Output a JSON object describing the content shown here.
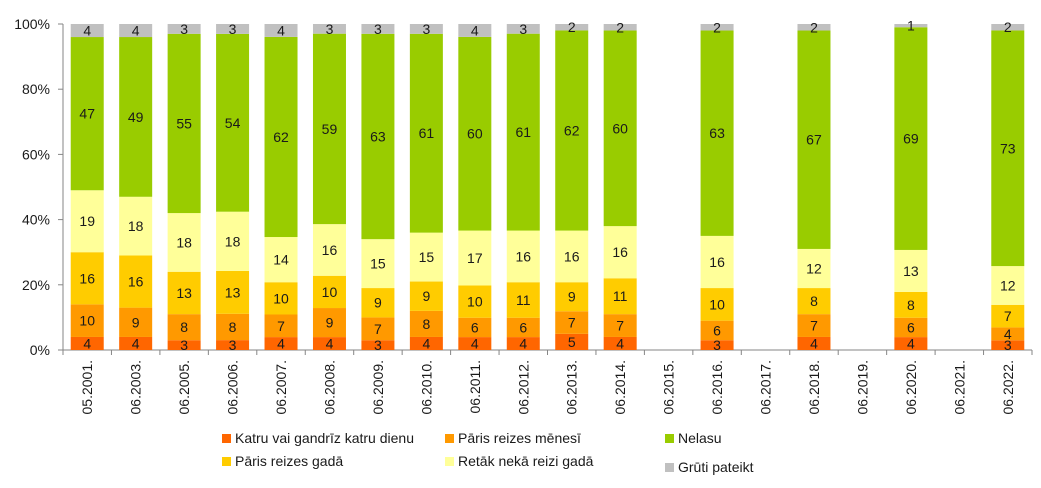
{
  "chart_data": {
    "type": "bar",
    "stacked": true,
    "title": "",
    "xlabel": "",
    "ylabel": "",
    "ylim": [
      0,
      100
    ],
    "y_ticks": [
      "0%",
      "20%",
      "40%",
      "60%",
      "80%",
      "100%"
    ],
    "categories": [
      "05.2001.",
      "06.2003.",
      "06.2005.",
      "06.2006.",
      "06.2007.",
      "06.2008.",
      "06.2009.",
      "06.2010.",
      "06.2011.",
      "06.2012.",
      "06.2013.",
      "06.2014.",
      "06.2015.",
      "06.2016.",
      "06.2017.",
      "06.2018.",
      "06.2019.",
      "06.2020.",
      "06.2021.",
      "06.2022."
    ],
    "series": [
      {
        "name": "Katru vai gandrīz katru dienu",
        "color": "#ff6600",
        "values": [
          4,
          4,
          3,
          3,
          4,
          4,
          3,
          4,
          4,
          4,
          5,
          4,
          null,
          3,
          null,
          4,
          null,
          4,
          null,
          3
        ]
      },
      {
        "name": "Pāris reizes mēnesī",
        "color": "#ff9900",
        "values": [
          10,
          9,
          8,
          8,
          7,
          9,
          7,
          8,
          6,
          6,
          7,
          7,
          null,
          6,
          null,
          7,
          null,
          6,
          null,
          4
        ]
      },
      {
        "name": "Pāris reizes gadā",
        "color": "#ffcc00",
        "values": [
          16,
          16,
          13,
          13,
          10,
          10,
          9,
          9,
          10,
          11,
          9,
          11,
          null,
          10,
          null,
          8,
          null,
          8,
          null,
          7
        ]
      },
      {
        "name": "Retāk nekā reizi gadā",
        "color": "#ffff99",
        "values": [
          19,
          18,
          18,
          18,
          14,
          16,
          15,
          15,
          17,
          16,
          16,
          16,
          null,
          16,
          null,
          12,
          null,
          13,
          null,
          12
        ]
      },
      {
        "name": "Nelasu",
        "color": "#99cc00",
        "values": [
          47,
          49,
          55,
          54,
          62,
          59,
          63,
          61,
          60,
          61,
          62,
          60,
          null,
          63,
          null,
          67,
          null,
          69,
          null,
          73
        ]
      },
      {
        "name": "Grūti pateikt",
        "color": "#c0c0c0",
        "values": [
          4,
          4,
          3,
          3,
          4,
          3,
          3,
          3,
          4,
          3,
          2,
          2,
          null,
          2,
          null,
          2,
          null,
          1,
          null,
          2
        ]
      }
    ],
    "legend_position": "bottom"
  }
}
